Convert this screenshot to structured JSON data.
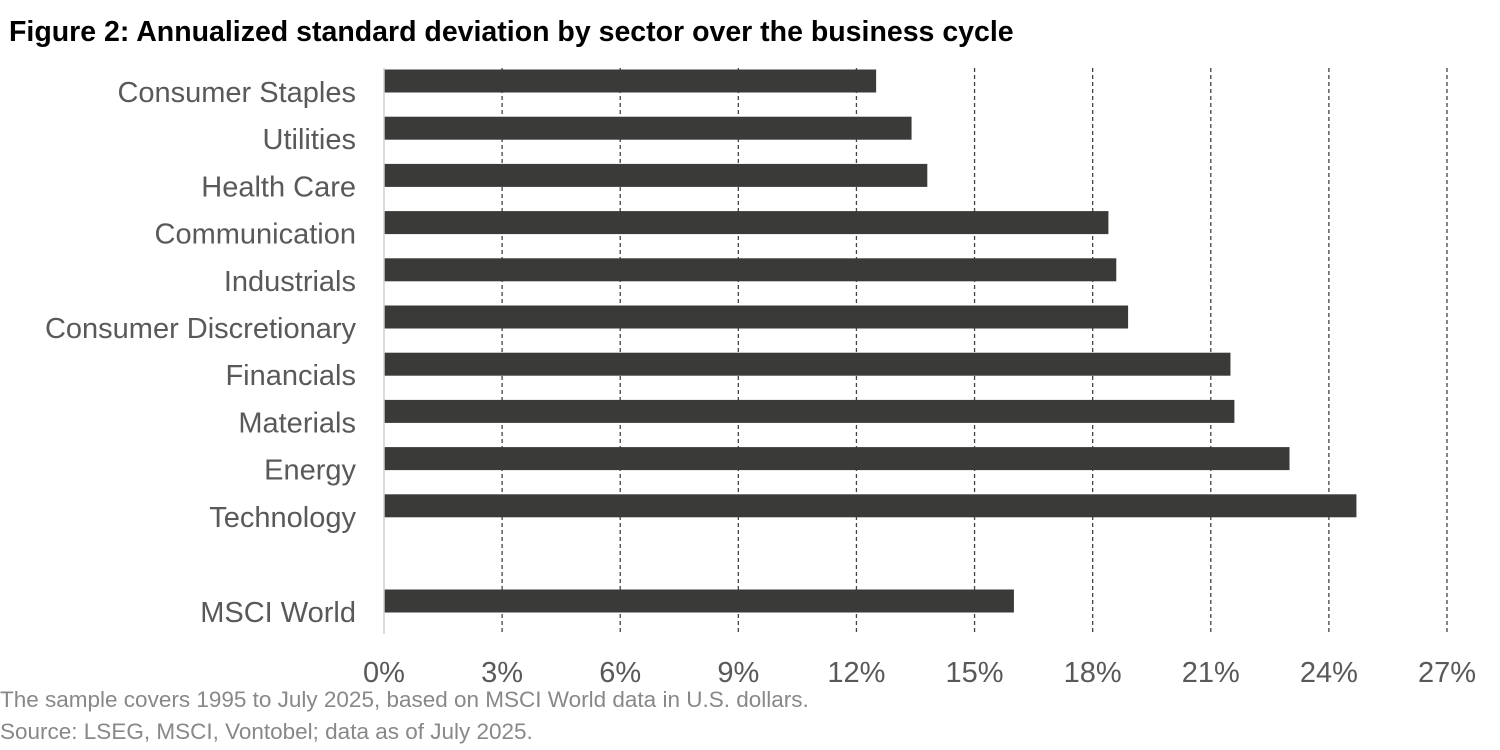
{
  "title": "Figure 2: Annualized standard deviation by sector over the business cycle",
  "footnotes": [
    "The sample covers 1995 to July 2025, based on MSCI World data in U.S. dollars.",
    "Source: LSEG, MSCI, Vontobel; data as of July 2025."
  ],
  "colors": {
    "bar": "#3a3a38",
    "grid": "#444444",
    "axis": "#d0d0d0",
    "label": "#595959",
    "note": "#888888"
  },
  "chart_data": {
    "type": "bar",
    "orientation": "horizontal",
    "categories": [
      "Consumer Staples",
      "Utilities",
      "Health Care",
      "Communication",
      "Industrials",
      "Consumer Discretionary",
      "Financials",
      "Materials",
      "Energy",
      "Technology",
      "MSCI World"
    ],
    "values": [
      12.5,
      13.4,
      13.8,
      18.4,
      18.6,
      18.9,
      21.5,
      21.6,
      23.0,
      24.7,
      16.0
    ],
    "unit": "%",
    "xlim": [
      0,
      27
    ],
    "xticks": [
      "0%",
      "3%",
      "6%",
      "9%",
      "12%",
      "15%",
      "18%",
      "21%",
      "24%",
      "27%"
    ],
    "tick_step": 3,
    "grid": "vertical dashed",
    "legend": "none"
  }
}
